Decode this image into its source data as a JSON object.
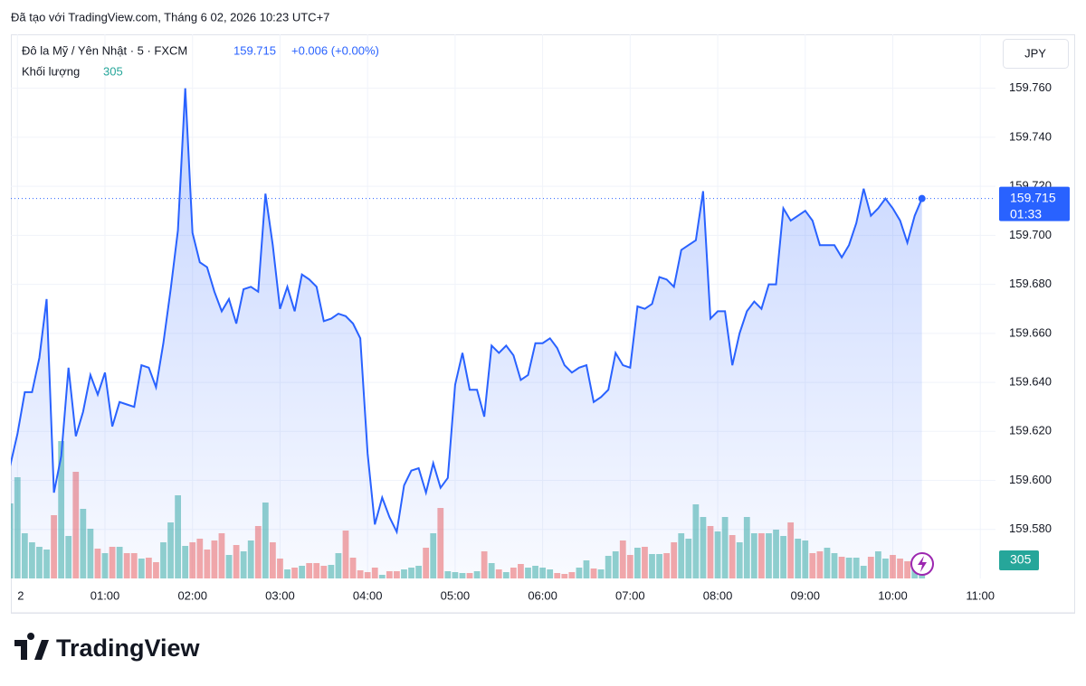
{
  "watermark": "Đã tạo với TradingView.com, Tháng 6 02, 2026 10:23 UTC+7",
  "logo": "TradingView",
  "chart_data": {
    "type": "line",
    "title": "Đô la Mỹ / Yên Nhật · 5 · FXCM",
    "change": "+0.006 (+0.00%)",
    "currency": "JPY",
    "countdown": "01:33",
    "categories": [
      null,
      "2",
      null,
      null,
      null,
      null,
      null,
      null,
      null,
      null,
      null,
      null,
      null,
      "01:00",
      null,
      null,
      null,
      null,
      null,
      null,
      null,
      null,
      null,
      null,
      null,
      "02:00",
      null,
      null,
      null,
      null,
      null,
      null,
      null,
      null,
      null,
      null,
      null,
      "03:00",
      null,
      null,
      null,
      null,
      null,
      null,
      null,
      null,
      null,
      null,
      null,
      "04:00",
      null,
      null,
      null,
      null,
      null,
      null,
      null,
      null,
      null,
      null,
      null,
      "05:00",
      null,
      null,
      null,
      null,
      null,
      null,
      null,
      null,
      null,
      null,
      null,
      "06:00",
      null,
      null,
      null,
      null,
      null,
      null,
      null,
      null,
      null,
      null,
      null,
      "07:00",
      null,
      null,
      null,
      null,
      null,
      null,
      null,
      null,
      null,
      null,
      null,
      "08:00",
      null,
      null,
      null,
      null,
      null,
      null,
      null,
      null,
      null,
      null,
      null,
      "09:00",
      null,
      null,
      null,
      null,
      null,
      null,
      null,
      null,
      null,
      null,
      null,
      "10:00",
      null,
      null,
      null,
      null,
      null,
      null,
      null,
      null,
      null,
      null,
      null,
      "11:00",
      null
    ],
    "series": [
      {
        "color": "#2962ff",
        "values": [
          159.606,
          159.619,
          159.636,
          159.636,
          159.65,
          159.674,
          159.595,
          159.61,
          159.646,
          159.618,
          159.628,
          159.643,
          159.635,
          159.644,
          159.622,
          159.632,
          159.631,
          159.63,
          159.647,
          159.646,
          159.638,
          159.656,
          159.678,
          159.702,
          159.76,
          159.701,
          159.689,
          159.687,
          159.677,
          159.669,
          159.674,
          159.664,
          159.678,
          159.679,
          159.677,
          159.717,
          159.696,
          159.67,
          159.679,
          159.669,
          159.684,
          159.682,
          159.679,
          159.665,
          159.666,
          159.668,
          159.667,
          159.664,
          159.658,
          159.611,
          159.582,
          159.593,
          159.585,
          159.579,
          159.598,
          159.604,
          159.605,
          159.595,
          159.607,
          159.597,
          159.601,
          159.639,
          159.652,
          159.637,
          159.637,
          159.626,
          159.655,
          159.652,
          159.655,
          159.651,
          159.641,
          159.643,
          159.656,
          159.656,
          159.658,
          159.654,
          159.647,
          159.644,
          159.646,
          159.647,
          159.632,
          159.634,
          159.637,
          159.652,
          159.647,
          159.646,
          159.671,
          159.67,
          159.672,
          159.683,
          159.682,
          159.679,
          159.694,
          159.696,
          159.698,
          159.718,
          159.666,
          159.669,
          159.669,
          159.647,
          159.66,
          159.669,
          159.673,
          159.67,
          159.68,
          159.68,
          159.711,
          159.706,
          159.708,
          159.71,
          159.706,
          159.696,
          159.696,
          159.696,
          159.691,
          159.696,
          159.705,
          159.719,
          159.708,
          159.711,
          159.715,
          159.711,
          159.706,
          159.697,
          159.708,
          159.715,
          null,
          null,
          null,
          null,
          null,
          null,
          null,
          null,
          null
        ]
      },
      {
        "name": "Khối lượng",
        "axis": "y2",
        "up_color": "#26a69a",
        "down_color": "#ef5350",
        "values": [
          5810,
          7840,
          3500,
          2800,
          2450,
          2240,
          4900,
          10640,
          3290,
          8260,
          5390,
          3850,
          2310,
          1960,
          2450,
          2450,
          1960,
          1960,
          1540,
          1610,
          1260,
          2800,
          4340,
          6440,
          2520,
          2800,
          3080,
          2240,
          2940,
          3500,
          1820,
          2590,
          2100,
          2940,
          4060,
          5880,
          2800,
          1540,
          700,
          840,
          980,
          1190,
          1190,
          980,
          1050,
          1960,
          3710,
          1610,
          630,
          490,
          840,
          280,
          560,
          560,
          700,
          840,
          980,
          2380,
          3500,
          5460,
          560,
          490,
          420,
          420,
          560,
          2100,
          1190,
          700,
          490,
          840,
          1120,
          840,
          980,
          840,
          700,
          420,
          350,
          490,
          840,
          1400,
          770,
          700,
          1750,
          2100,
          2940,
          1820,
          2380,
          2450,
          1890,
          1890,
          1960,
          2800,
          3500,
          3080,
          5740,
          4760,
          4060,
          3640,
          4760,
          3360,
          2800,
          4760,
          3500,
          3500,
          3500,
          3780,
          3290,
          4340,
          3080,
          2940,
          1960,
          2100,
          2380,
          1960,
          1680,
          1610,
          1610,
          980,
          1680,
          2100,
          1540,
          1820,
          1540,
          1330,
          1400,
          305,
          null,
          null,
          null,
          null,
          null,
          null,
          null,
          null,
          null
        ]
      }
    ],
    "ylim": [
      159.56,
      159.782
    ],
    "yticks": [
      {
        "value": 159.58,
        "label": "159.580"
      },
      {
        "value": 159.6,
        "label": "159.600"
      },
      {
        "value": 159.62,
        "label": "159.620"
      },
      {
        "value": 159.64,
        "label": "159.640"
      },
      {
        "value": 159.66,
        "label": "159.660"
      },
      {
        "value": 159.68,
        "label": "159.680"
      },
      {
        "value": 159.7,
        "label": "159.700"
      },
      {
        "value": 159.72,
        "label": "159.720"
      },
      {
        "value": 159.74,
        "label": "159.740"
      },
      {
        "value": 159.76,
        "label": "159.760"
      }
    ],
    "grid": true
  }
}
